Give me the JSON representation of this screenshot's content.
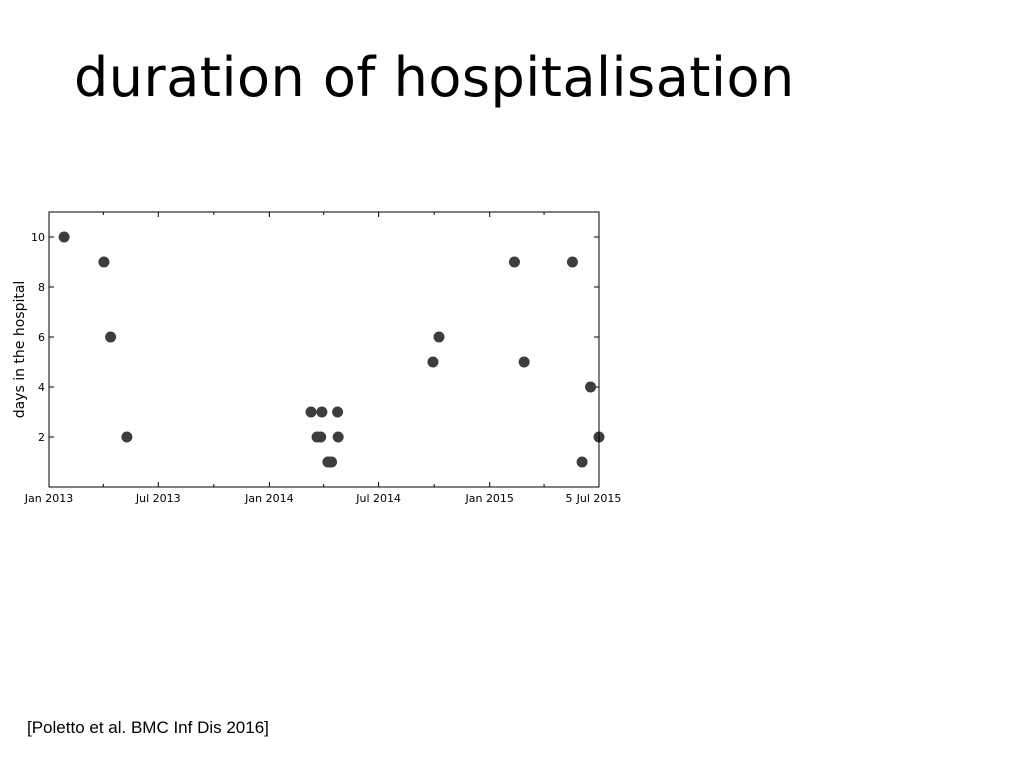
{
  "slide": {
    "title": "duration of hospitalisation",
    "citation": "[Poletto et al. BMC Inf Dis 2016]"
  },
  "chart_data": {
    "type": "scatter",
    "title": "",
    "xlabel": "",
    "ylabel": "days in the hospital",
    "x_axis_kind": "date",
    "xlim": [
      "2013-01-01",
      "2015-07-01"
    ],
    "ylim": [
      0,
      11
    ],
    "x_ticks": [
      {
        "date": "2013-01-01",
        "label": "Jan 2013"
      },
      {
        "date": "2013-07-01",
        "label": "Jul 2013"
      },
      {
        "date": "2014-01-01",
        "label": "Jan 2014"
      },
      {
        "date": "2014-07-01",
        "label": "Jul 2014"
      },
      {
        "date": "2015-01-01",
        "label": "Jan 2015"
      },
      {
        "date": "2015-07-01",
        "label": "Jul 2015"
      }
    ],
    "x_minor_tick_dates": [
      "2013-04-01",
      "2013-10-01",
      "2014-04-01",
      "2014-10-01",
      "2015-04-01"
    ],
    "y_ticks": [
      2,
      4,
      6,
      8,
      10
    ],
    "grid": false,
    "legend": "none",
    "annotations": [
      {
        "text": "5",
        "position": "near Jul 2015 tick label"
      }
    ],
    "marker_color": "#3d3d3d",
    "points": [
      {
        "x": "2013-01-26",
        "y": 10
      },
      {
        "x": "2013-04-02",
        "y": 9
      },
      {
        "x": "2013-04-13",
        "y": 6
      },
      {
        "x": "2013-05-10",
        "y": 2
      },
      {
        "x": "2014-03-11",
        "y": 3
      },
      {
        "x": "2014-03-21",
        "y": 2
      },
      {
        "x": "2014-03-27",
        "y": 2
      },
      {
        "x": "2014-03-29",
        "y": 3
      },
      {
        "x": "2014-04-08",
        "y": 1
      },
      {
        "x": "2014-04-10",
        "y": 1
      },
      {
        "x": "2014-04-14",
        "y": 1
      },
      {
        "x": "2014-04-24",
        "y": 3
      },
      {
        "x": "2014-04-25",
        "y": 2
      },
      {
        "x": "2014-09-29",
        "y": 5
      },
      {
        "x": "2014-10-09",
        "y": 6
      },
      {
        "x": "2015-02-11",
        "y": 9
      },
      {
        "x": "2015-02-27",
        "y": 5
      },
      {
        "x": "2015-05-18",
        "y": 9
      },
      {
        "x": "2015-06-03",
        "y": 1
      },
      {
        "x": "2015-06-17",
        "y": 4
      },
      {
        "x": "2015-07-01",
        "y": 2
      }
    ]
  }
}
